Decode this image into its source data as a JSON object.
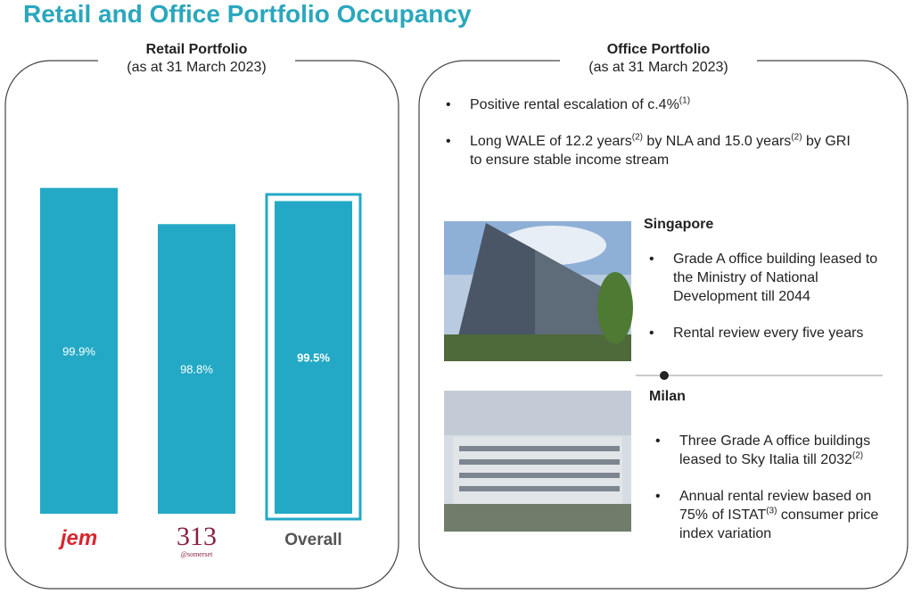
{
  "header": {
    "title": "Retail and Office Portfolio Occupancy"
  },
  "retail": {
    "heading": "Retail Portfolio",
    "subheading": "(as at 31 March 2023)"
  },
  "chart_data": {
    "type": "bar",
    "categories": [
      "jem",
      "313",
      "Overall"
    ],
    "category_note": "@somerset",
    "values": [
      99.9,
      98.8,
      99.5
    ],
    "value_labels": [
      "99.9%",
      "98.8%",
      "99.5%"
    ],
    "color": "#23a9c5",
    "ylim": [
      90,
      100
    ]
  },
  "office": {
    "heading": "Office Portfolio",
    "subheading": "(as at 31 March 2023)",
    "bullets": [
      [
        {
          "text": "Positive rental escalation of c.4%"
        },
        {
          "sup": "(1)"
        }
      ],
      [
        {
          "text": "Long WALE of 12.2 years"
        },
        {
          "sup": "(2)"
        },
        {
          "text": " by NLA and 15.0 years"
        },
        {
          "sup": "(2)"
        },
        {
          "text": " by GRI to ensure stable income stream"
        }
      ]
    ],
    "assets": [
      {
        "name": "Singapore",
        "bullets": [
          [
            {
              "text": "Grade A office building leased to the Ministry of National Development till 2044"
            }
          ],
          [
            {
              "text": "Rental review every five years"
            }
          ]
        ]
      },
      {
        "name": "Milan",
        "bullets": [
          [
            {
              "text": "Three Grade A office buildings leased to Sky Italia till 2032"
            },
            {
              "sup": "(2)"
            }
          ],
          [
            {
              "text": "Annual rental review based on 75% of ISTAT"
            },
            {
              "sup": "(3)"
            },
            {
              "text": " consumer price index variation"
            }
          ]
        ]
      }
    ]
  }
}
